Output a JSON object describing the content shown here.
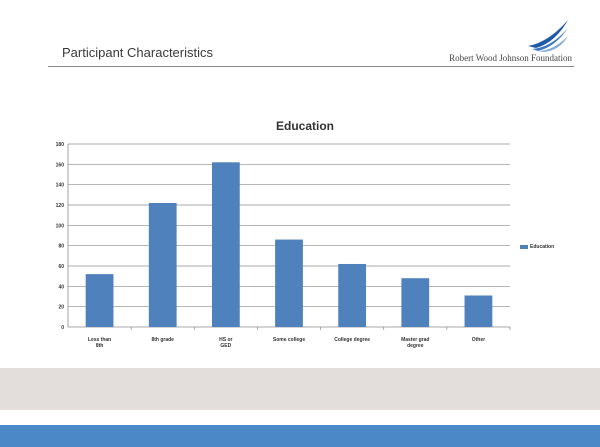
{
  "slide": {
    "title": "Participant Characteristics",
    "logo_text": "Robert Wood Johnson Foundation"
  },
  "colors": {
    "bar": "#4f81bd",
    "footer_light": "#e3dedb",
    "footer_blue": "#4a88c7",
    "logo_blue": "#1f5aa6"
  },
  "chart_data": {
    "type": "bar",
    "title": "Education",
    "categories": [
      "Less than 8th",
      "8th grade",
      "HS or GED",
      "Some college",
      "College degree",
      "Master grad degree",
      "Other"
    ],
    "series": [
      {
        "name": "Education",
        "values": [
          52,
          122,
          162,
          86,
          62,
          48,
          31
        ]
      }
    ],
    "y_ticks": [
      "0",
      "20",
      "40",
      "60",
      "80",
      "100",
      "120",
      "140",
      "160",
      "180"
    ],
    "ylim": [
      0,
      180
    ],
    "grid": true,
    "legend_position": "right"
  }
}
